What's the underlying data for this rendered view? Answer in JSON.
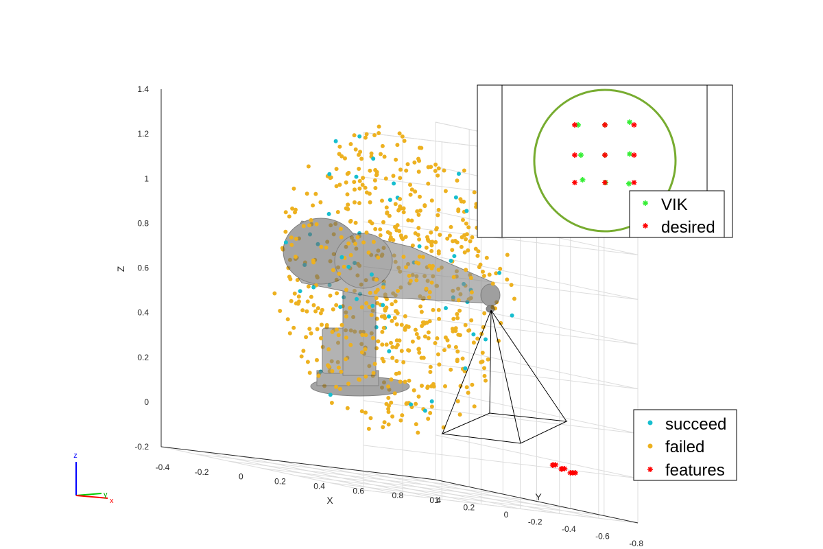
{
  "chart_data": [
    {
      "type": "scatter",
      "view": "3d",
      "xlabel": "X",
      "ylabel": "Y",
      "zlabel": "Z",
      "x_ticks": [
        "-0.4",
        "-0.2",
        "0",
        "0.2",
        "0.4",
        "0.6",
        "0.8",
        "1"
      ],
      "y_ticks": [
        "-0.8",
        "-0.6",
        "-0.4",
        "-0.2",
        "0",
        "0.2",
        "0.4"
      ],
      "z_ticks": [
        "-0.2",
        "0",
        "0.2",
        "0.4",
        "0.6",
        "0.8",
        "1",
        "1.2",
        "1.4"
      ],
      "xlim": [
        -0.4,
        1.0
      ],
      "ylim": [
        -0.8,
        0.4
      ],
      "zlim": [
        -0.2,
        1.4
      ],
      "grid": true,
      "legend_position": "bottom-right",
      "series": [
        {
          "name": "succeed",
          "color": "#17becf",
          "marker": "dot",
          "approx_count": 55,
          "cloud_center": [
            0.35,
            -0.1,
            0.7
          ],
          "cloud_spread": [
            0.35,
            0.35,
            0.45
          ]
        },
        {
          "name": "failed",
          "color": "#edb120",
          "marker": "dot",
          "approx_count": 620,
          "cloud_center": [
            0.35,
            -0.1,
            0.7
          ],
          "cloud_spread": [
            0.35,
            0.35,
            0.45
          ]
        },
        {
          "name": "features",
          "color": "#ff0000",
          "marker": "asterisk",
          "points": [
            [
              0.72,
              -0.62,
              0.0
            ],
            [
              0.74,
              -0.6,
              0.0
            ],
            [
              0.77,
              -0.58,
              0.0
            ],
            [
              0.73,
              -0.66,
              -0.01
            ],
            [
              0.76,
              -0.63,
              -0.01
            ],
            [
              0.79,
              -0.61,
              -0.01
            ],
            [
              0.75,
              -0.69,
              -0.02
            ],
            [
              0.78,
              -0.67,
              -0.02
            ],
            [
              0.81,
              -0.65,
              -0.02
            ]
          ]
        }
      ]
    },
    {
      "type": "scatter",
      "view": "camera-image-inset",
      "legend_position": "bottom-right",
      "series": [
        {
          "name": "VIK",
          "color": "#33ee33",
          "marker": "asterisk",
          "points": [
            [
              -0.78,
              0.55
            ],
            [
              0.0,
              0.55
            ],
            [
              0.72,
              0.6
            ],
            [
              -0.7,
              0.0
            ],
            [
              0.0,
              0.0
            ],
            [
              0.72,
              0.02
            ],
            [
              -0.65,
              -0.45
            ],
            [
              0.02,
              -0.5
            ],
            [
              0.7,
              -0.52
            ]
          ]
        },
        {
          "name": "desired",
          "color": "#ff0000",
          "marker": "asterisk",
          "points": [
            [
              -0.88,
              0.55
            ],
            [
              0.0,
              0.55
            ],
            [
              0.85,
              0.55
            ],
            [
              -0.88,
              0.0
            ],
            [
              0.0,
              0.0
            ],
            [
              0.85,
              0.0
            ],
            [
              -0.88,
              -0.5
            ],
            [
              0.0,
              -0.5
            ],
            [
              0.85,
              -0.5
            ]
          ]
        }
      ],
      "circle_color": "#77ac30"
    }
  ],
  "triad": {
    "z": "z",
    "y": "y",
    "x": "x"
  }
}
